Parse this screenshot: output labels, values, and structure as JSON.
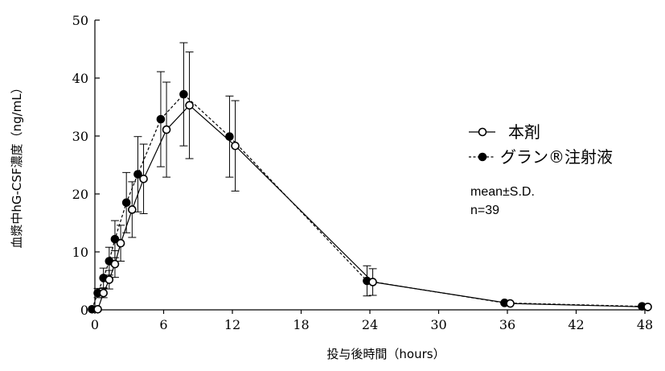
{
  "chart_data": {
    "type": "line",
    "xlabel": "投与後時間（hours）",
    "ylabel": "血漿中hG-CSF濃度（ng/mL）",
    "xlim": [
      0,
      48
    ],
    "ylim": [
      0,
      50
    ],
    "x_ticks": [
      0,
      6,
      12,
      18,
      24,
      30,
      36,
      42,
      48
    ],
    "y_ticks": [
      0,
      10,
      20,
      30,
      40,
      50
    ],
    "grid": false,
    "legend_position": "right",
    "note_lines": [
      "mean±S.D.",
      "n=39"
    ],
    "series": [
      {
        "name": "本剤",
        "marker": "open-circle",
        "line_style": "solid",
        "color": "#000000",
        "points": [
          {
            "x": 0,
            "y": 0.1,
            "sd": 0
          },
          {
            "x": 0.5,
            "y": 2.9,
            "sd": 0.8
          },
          {
            "x": 1,
            "y": 5.2,
            "sd": 1.6
          },
          {
            "x": 1.5,
            "y": 7.9,
            "sd": 2.3
          },
          {
            "x": 2,
            "y": 11.5,
            "sd": 3.1
          },
          {
            "x": 3,
            "y": 17.3,
            "sd": 4.8
          },
          {
            "x": 4,
            "y": 22.6,
            "sd": 6.0
          },
          {
            "x": 6,
            "y": 31.1,
            "sd": 8.2
          },
          {
            "x": 8,
            "y": 35.3,
            "sd": 9.2
          },
          {
            "x": 12,
            "y": 28.3,
            "sd": 7.8
          },
          {
            "x": 24,
            "y": 4.8,
            "sd": 2.3
          },
          {
            "x": 36,
            "y": 1.1,
            "sd": 0
          },
          {
            "x": 48,
            "y": 0.5,
            "sd": 0
          }
        ]
      },
      {
        "name": "グラン®注射液",
        "marker": "filled-circle",
        "line_style": "dashed",
        "color": "#000000",
        "points": [
          {
            "x": 0,
            "y": 0.1,
            "sd": 0
          },
          {
            "x": 0.5,
            "y": 2.9,
            "sd": 0.8
          },
          {
            "x": 1,
            "y": 5.5,
            "sd": 1.7
          },
          {
            "x": 1.5,
            "y": 8.4,
            "sd": 2.4
          },
          {
            "x": 2,
            "y": 12.2,
            "sd": 3.2
          },
          {
            "x": 3,
            "y": 18.5,
            "sd": 5.2
          },
          {
            "x": 4,
            "y": 23.4,
            "sd": 6.5
          },
          {
            "x": 6,
            "y": 32.9,
            "sd": 8.2
          },
          {
            "x": 8,
            "y": 37.2,
            "sd": 8.9
          },
          {
            "x": 12,
            "y": 29.9,
            "sd": 7.0
          },
          {
            "x": 24,
            "y": 5.0,
            "sd": 2.6
          },
          {
            "x": 36,
            "y": 1.2,
            "sd": 0
          },
          {
            "x": 48,
            "y": 0.6,
            "sd": 0
          }
        ]
      }
    ]
  }
}
